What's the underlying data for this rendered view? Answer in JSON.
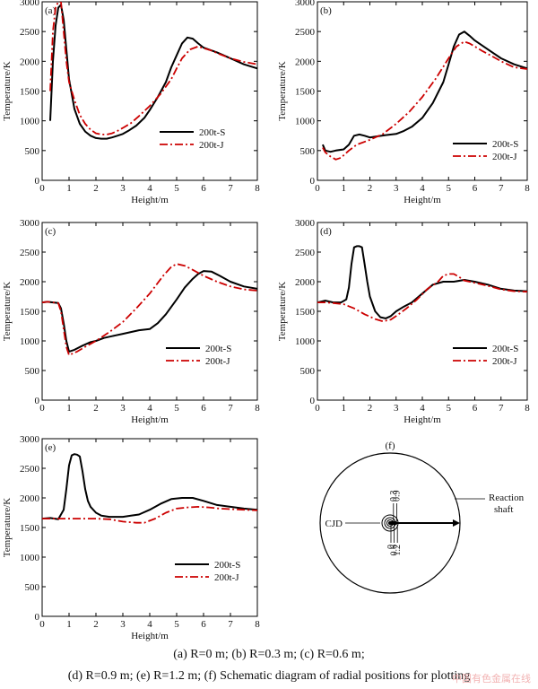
{
  "chart_data": [
    {
      "type": "line",
      "panel_label": "(a)",
      "xlabel": "Height/m",
      "ylabel": "Temperature/K",
      "xlim": [
        0,
        8
      ],
      "ylim": [
        0,
        3000
      ],
      "xticks": [
        0,
        1,
        2,
        3,
        4,
        5,
        6,
        7,
        8
      ],
      "yticks": [
        0,
        500,
        1000,
        1500,
        2000,
        2500,
        3000
      ],
      "legend_position": "right-middle",
      "series": [
        {
          "name": "200t-S",
          "color": "#000000",
          "style": "solid",
          "x": [
            0.3,
            0.4,
            0.5,
            0.6,
            0.7,
            0.8,
            0.9,
            1.0,
            1.2,
            1.4,
            1.6,
            1.8,
            2.0,
            2.2,
            2.4,
            2.6,
            2.8,
            3.0,
            3.2,
            3.5,
            3.8,
            4.0,
            4.3,
            4.6,
            4.8,
            5.0,
            5.2,
            5.4,
            5.6,
            5.8,
            6.0,
            6.5,
            7.0,
            7.5,
            8.0
          ],
          "y": [
            1000,
            2000,
            2600,
            2900,
            2950,
            2700,
            2200,
            1700,
            1200,
            950,
            820,
            750,
            710,
            700,
            700,
            720,
            750,
            780,
            830,
            920,
            1050,
            1180,
            1400,
            1650,
            1900,
            2100,
            2300,
            2400,
            2380,
            2300,
            2230,
            2150,
            2050,
            1950,
            1880
          ]
        },
        {
          "name": "200t-J",
          "color": "#cc0000",
          "style": "dashdot",
          "x": [
            0.3,
            0.4,
            0.5,
            0.6,
            0.7,
            0.8,
            0.9,
            1.0,
            1.2,
            1.4,
            1.6,
            1.8,
            2.0,
            2.2,
            2.4,
            2.6,
            2.8,
            3.0,
            3.3,
            3.6,
            4.0,
            4.4,
            4.8,
            5.0,
            5.2,
            5.5,
            5.8,
            6.0,
            6.3,
            6.6,
            7.0,
            7.5,
            8.0
          ],
          "y": [
            1500,
            2500,
            2900,
            3000,
            3000,
            2500,
            2000,
            1650,
            1350,
            1100,
            950,
            850,
            790,
            770,
            770,
            790,
            830,
            880,
            960,
            1080,
            1250,
            1450,
            1700,
            1880,
            2050,
            2200,
            2250,
            2220,
            2180,
            2120,
            2050,
            1990,
            1950
          ]
        }
      ]
    },
    {
      "type": "line",
      "panel_label": "(b)",
      "xlabel": "Height/m",
      "ylabel": "Temperature/K",
      "xlim": [
        0,
        8
      ],
      "ylim": [
        0,
        3000
      ],
      "xticks": [
        0,
        1,
        2,
        3,
        4,
        5,
        6,
        7,
        8
      ],
      "yticks": [
        0,
        500,
        1000,
        1500,
        2000,
        2500,
        3000
      ],
      "legend_position": "right-lower",
      "series": [
        {
          "name": "200t-S",
          "color": "#000000",
          "style": "solid",
          "x": [
            0.2,
            0.3,
            0.5,
            0.7,
            1.0,
            1.2,
            1.4,
            1.6,
            1.8,
            2.0,
            2.3,
            2.6,
            3.0,
            3.3,
            3.6,
            4.0,
            4.4,
            4.8,
            5.0,
            5.2,
            5.4,
            5.6,
            5.8,
            6.0,
            6.5,
            7.0,
            7.5,
            8.0
          ],
          "y": [
            600,
            500,
            480,
            500,
            520,
            600,
            750,
            770,
            750,
            720,
            740,
            760,
            780,
            830,
            900,
            1050,
            1300,
            1650,
            1950,
            2250,
            2450,
            2500,
            2430,
            2350,
            2200,
            2050,
            1950,
            1880
          ]
        },
        {
          "name": "200t-J",
          "color": "#cc0000",
          "style": "dashdot",
          "x": [
            0.2,
            0.3,
            0.5,
            0.7,
            0.9,
            1.2,
            1.5,
            2.0,
            2.5,
            3.0,
            3.5,
            4.0,
            4.5,
            5.0,
            5.3,
            5.6,
            5.8,
            6.0,
            6.3,
            6.6,
            7.0,
            7.5,
            8.0
          ],
          "y": [
            550,
            470,
            400,
            350,
            380,
            500,
            600,
            680,
            780,
            950,
            1150,
            1400,
            1700,
            2050,
            2250,
            2330,
            2300,
            2250,
            2170,
            2100,
            2000,
            1900,
            1870
          ]
        }
      ]
    },
    {
      "type": "line",
      "panel_label": "(c)",
      "xlabel": "Height/m",
      "ylabel": "Temperature/K",
      "xlim": [
        0,
        8
      ],
      "ylim": [
        0,
        3000
      ],
      "xticks": [
        0,
        1,
        2,
        3,
        4,
        5,
        6,
        7,
        8
      ],
      "yticks": [
        0,
        500,
        1000,
        1500,
        2000,
        2500,
        3000
      ],
      "legend_position": "right-lower",
      "series": [
        {
          "name": "200t-S",
          "color": "#000000",
          "style": "solid",
          "x": [
            0.0,
            0.2,
            0.4,
            0.6,
            0.7,
            0.8,
            0.9,
            1.0,
            1.2,
            1.5,
            1.8,
            2.0,
            2.3,
            2.6,
            3.0,
            3.3,
            3.6,
            4.0,
            4.3,
            4.6,
            5.0,
            5.3,
            5.6,
            5.8,
            6.0,
            6.3,
            6.6,
            7.0,
            7.5,
            8.0
          ],
          "y": [
            1650,
            1660,
            1650,
            1640,
            1550,
            1300,
            1000,
            820,
            850,
            920,
            980,
            1000,
            1050,
            1080,
            1120,
            1150,
            1180,
            1200,
            1300,
            1450,
            1700,
            1900,
            2050,
            2130,
            2180,
            2170,
            2100,
            2000,
            1920,
            1880
          ]
        },
        {
          "name": "200t-J",
          "color": "#cc0000",
          "style": "dashdot",
          "x": [
            0.0,
            0.2,
            0.4,
            0.6,
            0.7,
            0.8,
            0.9,
            1.0,
            1.3,
            1.6,
            2.0,
            2.5,
            3.0,
            3.5,
            4.0,
            4.5,
            4.8,
            5.0,
            5.3,
            5.6,
            6.0,
            6.5,
            7.0,
            7.5,
            8.0
          ],
          "y": [
            1650,
            1660,
            1650,
            1640,
            1500,
            1200,
            900,
            760,
            820,
            900,
            1000,
            1150,
            1320,
            1550,
            1800,
            2100,
            2250,
            2300,
            2270,
            2200,
            2100,
            2000,
            1920,
            1870,
            1850
          ]
        }
      ]
    },
    {
      "type": "line",
      "panel_label": "(d)",
      "xlabel": "Height/m",
      "ylabel": "Temperature/K",
      "xlim": [
        0,
        8
      ],
      "ylim": [
        0,
        3000
      ],
      "xticks": [
        0,
        1,
        2,
        3,
        4,
        5,
        6,
        7,
        8
      ],
      "yticks": [
        0,
        500,
        1000,
        1500,
        2000,
        2500,
        3000
      ],
      "legend_position": "right-lower",
      "series": [
        {
          "name": "200t-S",
          "color": "#000000",
          "style": "solid",
          "x": [
            0.0,
            0.3,
            0.6,
            0.9,
            1.1,
            1.2,
            1.3,
            1.4,
            1.5,
            1.6,
            1.7,
            1.8,
            1.9,
            2.0,
            2.2,
            2.4,
            2.6,
            2.8,
            3.0,
            3.3,
            3.6,
            4.0,
            4.4,
            4.8,
            5.2,
            5.6,
            6.0,
            6.5,
            7.0,
            7.5,
            8.0
          ],
          "y": [
            1650,
            1680,
            1650,
            1650,
            1700,
            1900,
            2300,
            2580,
            2600,
            2600,
            2580,
            2300,
            2000,
            1750,
            1500,
            1400,
            1380,
            1420,
            1500,
            1580,
            1650,
            1800,
            1950,
            2000,
            2000,
            2030,
            2000,
            1950,
            1880,
            1850,
            1840
          ]
        },
        {
          "name": "200t-J",
          "color": "#cc0000",
          "style": "dashdot",
          "x": [
            0.0,
            0.3,
            0.6,
            1.0,
            1.4,
            1.8,
            2.2,
            2.5,
            2.8,
            3.0,
            3.4,
            3.8,
            4.2,
            4.6,
            4.8,
            5.0,
            5.2,
            5.4,
            5.6,
            6.0,
            6.5,
            7.0,
            7.5,
            8.0
          ],
          "y": [
            1650,
            1650,
            1640,
            1620,
            1550,
            1450,
            1370,
            1330,
            1360,
            1420,
            1550,
            1700,
            1880,
            2000,
            2100,
            2130,
            2130,
            2080,
            2020,
            1980,
            1930,
            1870,
            1840,
            1830
          ]
        }
      ]
    },
    {
      "type": "line",
      "panel_label": "(e)",
      "xlabel": "Height/m",
      "ylabel": "Temperature/K",
      "xlim": [
        0,
        8
      ],
      "ylim": [
        0,
        3000
      ],
      "xticks": [
        0,
        1,
        2,
        3,
        4,
        5,
        6,
        7,
        8
      ],
      "yticks": [
        0,
        500,
        1000,
        1500,
        2000,
        2500,
        3000
      ],
      "legend_position": "right-bottom",
      "series": [
        {
          "name": "200t-S",
          "color": "#000000",
          "style": "solid",
          "x": [
            0.0,
            0.3,
            0.6,
            0.8,
            0.9,
            1.0,
            1.1,
            1.2,
            1.3,
            1.4,
            1.5,
            1.6,
            1.7,
            1.8,
            2.0,
            2.2,
            2.5,
            2.8,
            3.0,
            3.3,
            3.6,
            4.0,
            4.4,
            4.8,
            5.2,
            5.6,
            6.0,
            6.5,
            7.0,
            7.5,
            8.0
          ],
          "y": [
            1650,
            1660,
            1640,
            1800,
            2150,
            2550,
            2720,
            2740,
            2730,
            2700,
            2450,
            2150,
            1950,
            1850,
            1750,
            1700,
            1680,
            1680,
            1680,
            1700,
            1720,
            1800,
            1900,
            1980,
            2000,
            2000,
            1950,
            1880,
            1850,
            1820,
            1800
          ]
        },
        {
          "name": "200t-J",
          "color": "#cc0000",
          "style": "dashdot",
          "x": [
            0.0,
            0.5,
            1.0,
            1.5,
            2.0,
            2.5,
            3.0,
            3.5,
            3.8,
            4.2,
            4.6,
            5.0,
            5.4,
            5.8,
            6.2,
            6.6,
            7.0,
            7.5,
            8.0
          ],
          "y": [
            1650,
            1650,
            1650,
            1650,
            1650,
            1640,
            1600,
            1580,
            1580,
            1650,
            1750,
            1820,
            1840,
            1850,
            1840,
            1820,
            1810,
            1800,
            1790
          ]
        }
      ]
    }
  ],
  "schematic": {
    "panel_label": "(f)",
    "center_label": "CJD",
    "wall_label_line1": "Reaction",
    "wall_label_line2": "shaft",
    "upper_ticks": [
      "0.3",
      "0.9"
    ],
    "lower_ticks": [
      "0",
      "0.6",
      "1.2"
    ]
  },
  "caption": {
    "line1": "(a) R=0 m; (b) R=0.3 m; (c) R=0.6 m;",
    "line2": "(d) R=0.9 m; (e) R=1.2 m; (f) Schematic diagram of radial positions for plotting"
  },
  "watermark": "中国有色金属在线"
}
